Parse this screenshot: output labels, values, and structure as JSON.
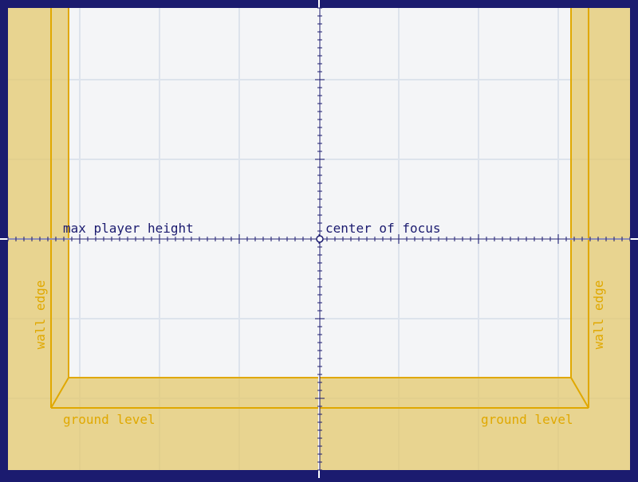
{
  "labels": {
    "max_player_height": "max player height",
    "center_of_focus": "center of focus",
    "wall_edge_left": "wall edge",
    "wall_edge_right": "wall edge",
    "ground_level_left": "ground level",
    "ground_level_right": "ground level"
  },
  "colors": {
    "frame": "#1b1b6f",
    "canvas": "#f4f5f7",
    "grid": "#dde3ec",
    "wall_fill": "#e8d490",
    "wall_stroke": "#e0a800",
    "wall_text": "#e0a800",
    "axis": "#1b1b6f",
    "axis_text": "#1b1b6f",
    "crosshair": "#ffffff"
  }
}
